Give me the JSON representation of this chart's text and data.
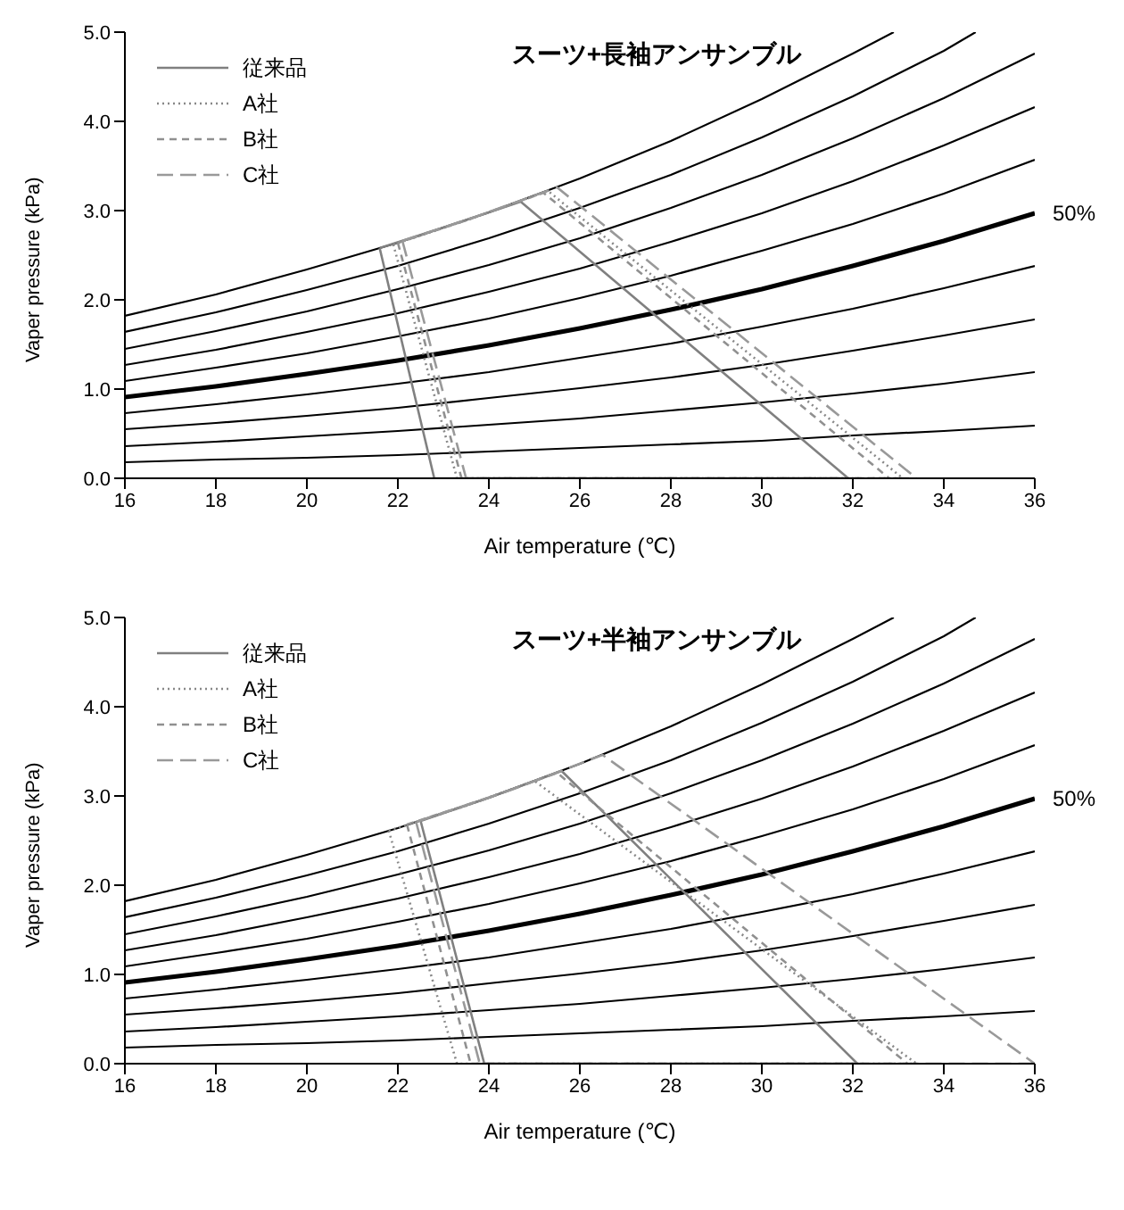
{
  "chart_data": [
    {
      "type": "line",
      "title": "スーツ+長袖アンサンブル",
      "xlabel": "Air temperature (℃)",
      "ylabel": "Vaper pressure (kPa)",
      "xlim": [
        16,
        36
      ],
      "xticks": [
        16,
        18,
        20,
        22,
        24,
        26,
        28,
        30,
        32,
        34,
        36
      ],
      "ylim": [
        0,
        5
      ],
      "yticks": [
        {
          "value": 0,
          "label": "0.0"
        },
        {
          "value": 1,
          "label": "1.0"
        },
        {
          "value": 2,
          "label": "2.0"
        },
        {
          "value": 3,
          "label": "3.0"
        },
        {
          "value": 4,
          "label": "4.0"
        },
        {
          "value": 5,
          "label": "5.0"
        }
      ],
      "grid": false,
      "legend": "top left",
      "marker": "none",
      "series": [
        {
          "color": "#000000",
          "x": [
            16,
            18,
            20,
            22,
            24,
            26,
            28,
            30,
            32,
            32.9
          ],
          "values": [
            1.82,
            2.06,
            2.34,
            2.64,
            2.98,
            3.36,
            3.78,
            4.25,
            4.76,
            5.0
          ]
        },
        {
          "color": "#000000",
          "x": [
            16,
            18,
            20,
            22,
            24,
            26,
            28,
            30,
            32,
            34,
            34.7
          ],
          "values": [
            1.64,
            1.86,
            2.11,
            2.38,
            2.69,
            3.03,
            3.4,
            3.82,
            4.28,
            4.79,
            5.0
          ]
        },
        {
          "color": "#000000",
          "x": [
            16,
            18,
            20,
            22,
            24,
            26,
            28,
            30,
            32,
            34,
            36
          ],
          "values": [
            1.45,
            1.65,
            1.87,
            2.12,
            2.39,
            2.69,
            3.03,
            3.4,
            3.81,
            4.26,
            4.76
          ]
        },
        {
          "color": "#000000",
          "x": [
            16,
            18,
            20,
            22,
            24,
            26,
            28,
            30,
            32,
            34,
            36
          ],
          "values": [
            1.27,
            1.44,
            1.64,
            1.85,
            2.09,
            2.35,
            2.65,
            2.97,
            3.33,
            3.73,
            4.16
          ]
        },
        {
          "color": "#000000",
          "x": [
            16,
            18,
            20,
            22,
            24,
            26,
            28,
            30,
            32,
            34,
            36
          ],
          "values": [
            1.09,
            1.24,
            1.4,
            1.59,
            1.79,
            2.02,
            2.27,
            2.55,
            2.85,
            3.19,
            3.57
          ]
        },
        {
          "name": "50%",
          "color": "#000000",
          "x": [
            16,
            18,
            20,
            22,
            24,
            26,
            28,
            30,
            32,
            34,
            36
          ],
          "values": [
            0.91,
            1.03,
            1.17,
            1.32,
            1.49,
            1.68,
            1.89,
            2.12,
            2.38,
            2.66,
            2.97
          ]
        },
        {
          "color": "#000000",
          "x": [
            16,
            18,
            20,
            22,
            24,
            26,
            28,
            30,
            32,
            34,
            36
          ],
          "values": [
            0.73,
            0.83,
            0.94,
            1.06,
            1.19,
            1.35,
            1.51,
            1.7,
            1.9,
            2.13,
            2.38
          ]
        },
        {
          "color": "#000000",
          "x": [
            16,
            18,
            20,
            22,
            24,
            26,
            28,
            30,
            32,
            34,
            36
          ],
          "values": [
            0.55,
            0.62,
            0.7,
            0.79,
            0.9,
            1.01,
            1.13,
            1.27,
            1.43,
            1.6,
            1.78
          ]
        },
        {
          "color": "#000000",
          "x": [
            16,
            18,
            20,
            22,
            24,
            26,
            28,
            30,
            32,
            34,
            36
          ],
          "values": [
            0.36,
            0.41,
            0.47,
            0.53,
            0.6,
            0.67,
            0.76,
            0.85,
            0.95,
            1.06,
            1.19
          ]
        },
        {
          "color": "#000000",
          "x": [
            16,
            18,
            20,
            22,
            24,
            26,
            28,
            30,
            32,
            34,
            36
          ],
          "values": [
            0.18,
            0.21,
            0.23,
            0.26,
            0.3,
            0.34,
            0.38,
            0.42,
            0.48,
            0.53,
            0.59
          ]
        },
        {
          "name": "従来品",
          "color": "#808080",
          "line_style": "solid",
          "x": [
            21.6,
            22.8,
            31.9,
            null,
            21.6,
            23.0,
            24.7,
            31.9
          ],
          "values": [
            2.58,
            0,
            0,
            null,
            2.58,
            2.81,
            3.1,
            0
          ]
        },
        {
          "name": "A社",
          "color": "#888888",
          "line_style": "dotted",
          "x": [
            21.9,
            23.3,
            33.1,
            null,
            21.9,
            23.5,
            25.3,
            33.1
          ],
          "values": [
            2.62,
            0,
            0,
            null,
            2.62,
            2.89,
            3.22,
            0
          ]
        },
        {
          "name": "B社",
          "color": "#909090",
          "line_style": "dashed",
          "x": [
            22.0,
            23.4,
            32.8,
            null,
            22.0,
            23.5,
            25.2,
            32.8
          ],
          "values": [
            2.64,
            0,
            0,
            null,
            2.64,
            2.89,
            3.2,
            0
          ]
        },
        {
          "name": "C社",
          "color": "#999999",
          "line_style": "dashed",
          "x": [
            22.1,
            23.5,
            33.4,
            null,
            22.1,
            23.7,
            25.5,
            33.4
          ],
          "values": [
            2.66,
            0,
            0,
            null,
            2.66,
            2.93,
            3.26,
            0
          ]
        }
      ]
    },
    {
      "type": "line",
      "title": "スーツ+半袖アンサンブル",
      "xlabel": "Air temperature (℃)",
      "ylabel": "Vaper pressure (kPa)",
      "xlim": [
        16,
        36
      ],
      "xticks": [
        16,
        18,
        20,
        22,
        24,
        26,
        28,
        30,
        32,
        34,
        36
      ],
      "ylim": [
        0,
        5
      ],
      "yticks": [
        {
          "value": 0,
          "label": "0.0"
        },
        {
          "value": 1,
          "label": "1.0"
        },
        {
          "value": 2,
          "label": "2.0"
        },
        {
          "value": 3,
          "label": "3.0"
        },
        {
          "value": 4,
          "label": "4.0"
        },
        {
          "value": 5,
          "label": "5.0"
        }
      ],
      "grid": false,
      "legend": "top left",
      "marker": "none",
      "series": [
        {
          "color": "#000000",
          "x": [
            16,
            18,
            20,
            22,
            24,
            26,
            28,
            30,
            32,
            32.9
          ],
          "values": [
            1.82,
            2.06,
            2.34,
            2.64,
            2.98,
            3.36,
            3.78,
            4.25,
            4.76,
            5.0
          ]
        },
        {
          "color": "#000000",
          "x": [
            16,
            18,
            20,
            22,
            24,
            26,
            28,
            30,
            32,
            34,
            34.7
          ],
          "values": [
            1.64,
            1.86,
            2.11,
            2.38,
            2.69,
            3.03,
            3.4,
            3.82,
            4.28,
            4.79,
            5.0
          ]
        },
        {
          "color": "#000000",
          "x": [
            16,
            18,
            20,
            22,
            24,
            26,
            28,
            30,
            32,
            34,
            36
          ],
          "values": [
            1.45,
            1.65,
            1.87,
            2.12,
            2.39,
            2.69,
            3.03,
            3.4,
            3.81,
            4.26,
            4.76
          ]
        },
        {
          "color": "#000000",
          "x": [
            16,
            18,
            20,
            22,
            24,
            26,
            28,
            30,
            32,
            34,
            36
          ],
          "values": [
            1.27,
            1.44,
            1.64,
            1.85,
            2.09,
            2.35,
            2.65,
            2.97,
            3.33,
            3.73,
            4.16
          ]
        },
        {
          "color": "#000000",
          "x": [
            16,
            18,
            20,
            22,
            24,
            26,
            28,
            30,
            32,
            34,
            36
          ],
          "values": [
            1.09,
            1.24,
            1.4,
            1.59,
            1.79,
            2.02,
            2.27,
            2.55,
            2.85,
            3.19,
            3.57
          ]
        },
        {
          "name": "50%",
          "color": "#000000",
          "x": [
            16,
            18,
            20,
            22,
            24,
            26,
            28,
            30,
            32,
            34,
            36
          ],
          "values": [
            0.91,
            1.03,
            1.17,
            1.32,
            1.49,
            1.68,
            1.89,
            2.12,
            2.38,
            2.66,
            2.97
          ]
        },
        {
          "color": "#000000",
          "x": [
            16,
            18,
            20,
            22,
            24,
            26,
            28,
            30,
            32,
            34,
            36
          ],
          "values": [
            0.73,
            0.83,
            0.94,
            1.06,
            1.19,
            1.35,
            1.51,
            1.7,
            1.9,
            2.13,
            2.38
          ]
        },
        {
          "color": "#000000",
          "x": [
            16,
            18,
            20,
            22,
            24,
            26,
            28,
            30,
            32,
            34,
            36
          ],
          "values": [
            0.55,
            0.62,
            0.7,
            0.79,
            0.9,
            1.01,
            1.13,
            1.27,
            1.43,
            1.6,
            1.78
          ]
        },
        {
          "color": "#000000",
          "x": [
            16,
            18,
            20,
            22,
            24,
            26,
            28,
            30,
            32,
            34,
            36
          ],
          "values": [
            0.36,
            0.41,
            0.47,
            0.53,
            0.6,
            0.67,
            0.76,
            0.85,
            0.95,
            1.06,
            1.19
          ]
        },
        {
          "color": "#000000",
          "x": [
            16,
            18,
            20,
            22,
            24,
            26,
            28,
            30,
            32,
            34,
            36
          ],
          "values": [
            0.18,
            0.21,
            0.23,
            0.26,
            0.3,
            0.34,
            0.38,
            0.42,
            0.48,
            0.53,
            0.59
          ]
        },
        {
          "name": "従来品",
          "color": "#808080",
          "line_style": "solid",
          "x": [
            22.5,
            23.9,
            32.1,
            null,
            22.5,
            24.0,
            25.6,
            32.1
          ],
          "values": [
            2.72,
            0,
            0,
            null,
            2.72,
            2.98,
            3.28,
            0
          ]
        },
        {
          "name": "A社",
          "color": "#888888",
          "line_style": "dotted",
          "x": [
            21.8,
            23.3,
            33.4,
            null,
            21.8,
            23.5,
            25.0,
            33.4
          ],
          "values": [
            2.61,
            0,
            0,
            null,
            2.61,
            2.89,
            3.17,
            0
          ]
        },
        {
          "name": "B社",
          "color": "#909090",
          "line_style": "dashed",
          "x": [
            22.2,
            23.6,
            33.2,
            null,
            22.2,
            24.0,
            25.5,
            33.2
          ],
          "values": [
            2.68,
            0,
            0,
            null,
            2.68,
            2.98,
            3.26,
            0
          ]
        },
        {
          "name": "C社",
          "color": "#999999",
          "line_style": "dashed",
          "x": [
            22.4,
            23.8,
            36.0,
            null,
            22.4,
            24.5,
            26.5,
            36.0
          ],
          "values": [
            2.71,
            0,
            0,
            null,
            2.71,
            3.07,
            3.46,
            0
          ]
        }
      ]
    }
  ]
}
